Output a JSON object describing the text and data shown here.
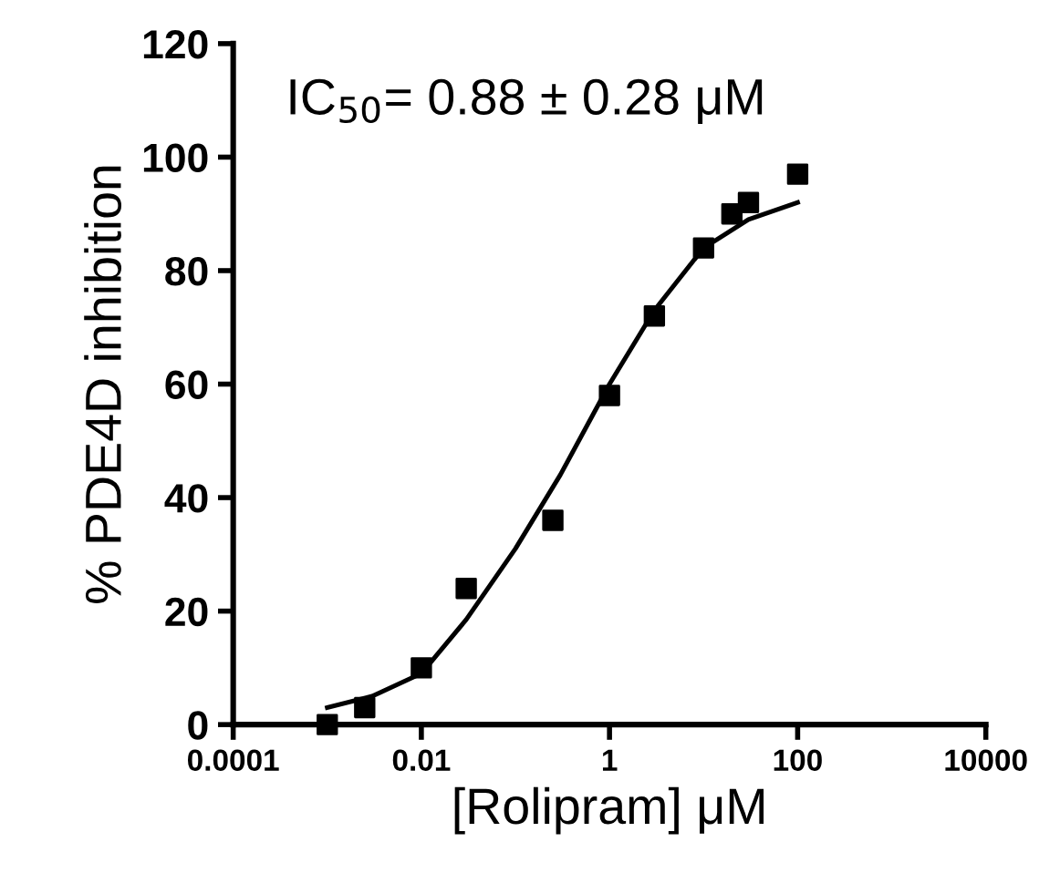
{
  "chart_data": {
    "type": "scatter",
    "xlabel": "[Rolipram] μM",
    "ylabel": "% PDE4D inhibition",
    "log": "x",
    "xlim": [
      0.0001,
      10000
    ],
    "xticks": [
      {
        "value": 0.0001,
        "label": "0.0001"
      },
      {
        "value": 0.01,
        "label": "0.01"
      },
      {
        "value": 1,
        "label": "1"
      },
      {
        "value": 100,
        "label": "100"
      },
      {
        "value": 10000,
        "label": "10000"
      }
    ],
    "ylim": [
      0,
      120
    ],
    "yticks": [
      0,
      20,
      40,
      60,
      80,
      100,
      120
    ],
    "grid": false,
    "legend": false,
    "marker": "square",
    "annotations": [
      "IC$_{50}$= 0.88 ± 0.28 μM"
    ],
    "series": [
      {
        "color": "#000000",
        "x": [
          0.001,
          0.0025,
          0.01,
          0.03,
          0.25,
          1,
          3,
          10,
          20,
          30,
          100
        ],
        "values": [
          0,
          3,
          10,
          24,
          36,
          58,
          72,
          84,
          90,
          92,
          97
        ]
      },
      {
        "type": "line",
        "color": "#000000",
        "marker": "none",
        "line_style": "solid",
        "x": [
          0.001,
          0.003,
          0.01,
          0.03,
          0.1,
          0.3,
          1,
          3,
          10,
          30,
          100
        ],
        "values": [
          3,
          5,
          9,
          18.5,
          31,
          44,
          60,
          73,
          84,
          89,
          92
        ]
      }
    ]
  }
}
